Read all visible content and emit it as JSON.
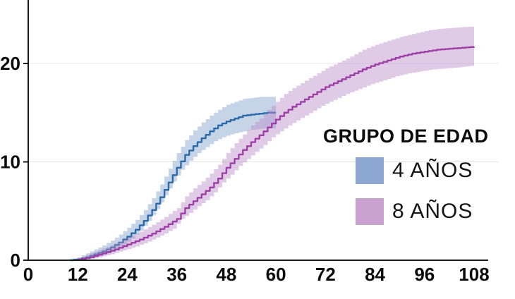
{
  "chart_data": {
    "type": "line",
    "subtype": "step-cumulative-incidence-with-confidence-bands",
    "title": "",
    "xlabel": "",
    "ylabel": "",
    "xlim": [
      0,
      108
    ],
    "ylim": [
      0,
      25.7
    ],
    "x_ticks": [
      0,
      12,
      24,
      36,
      48,
      60,
      72,
      84,
      96,
      108
    ],
    "y_ticks": [
      0,
      10,
      20
    ],
    "grid": "horizontal-only",
    "grid_color": "#e4e4e4",
    "axis_color": "#1c1c1c",
    "tick_label_color": "#0b0b0b",
    "legend": {
      "title": "GRUPO DE EDAD",
      "position": "inside-right",
      "items": [
        {
          "label": "4 AÑOS",
          "swatch_color": "#8ba7d2"
        },
        {
          "label": "8 AÑOS",
          "swatch_color": "#c9a2d0"
        }
      ]
    },
    "series": [
      {
        "name": "4 AÑOS",
        "line_color": "#2d6aa8",
        "band_color": "#7f9fc9",
        "band_opacity": 0.45,
        "points_mvlh": [
          [
            10,
            0.0,
            0.0,
            0.05
          ],
          [
            12,
            0.1,
            0.0,
            0.3
          ],
          [
            14,
            0.3,
            0.05,
            0.7
          ],
          [
            16,
            0.6,
            0.2,
            1.1
          ],
          [
            18,
            0.9,
            0.4,
            1.5
          ],
          [
            20,
            1.3,
            0.7,
            2.0
          ],
          [
            22,
            1.8,
            1.1,
            2.6
          ],
          [
            24,
            2.4,
            1.6,
            3.3
          ],
          [
            26,
            3.1,
            2.2,
            4.1
          ],
          [
            28,
            4.0,
            3.0,
            5.1
          ],
          [
            30,
            5.1,
            4.0,
            6.3
          ],
          [
            32,
            6.4,
            5.2,
            7.7
          ],
          [
            34,
            7.9,
            6.6,
            9.3
          ],
          [
            36,
            9.4,
            8.0,
            10.9
          ],
          [
            38,
            10.7,
            9.2,
            12.2
          ],
          [
            40,
            11.6,
            10.1,
            13.2
          ],
          [
            42,
            12.4,
            10.9,
            14.0
          ],
          [
            44,
            13.1,
            11.5,
            14.7
          ],
          [
            46,
            13.7,
            12.1,
            15.3
          ],
          [
            48,
            14.1,
            12.5,
            15.8
          ],
          [
            50,
            14.4,
            12.8,
            16.1
          ],
          [
            52,
            14.7,
            13.0,
            16.4
          ],
          [
            54,
            14.8,
            13.2,
            16.5
          ],
          [
            56,
            14.9,
            13.3,
            16.6
          ],
          [
            58,
            15.0,
            13.4,
            16.6
          ],
          [
            60,
            15.0,
            13.4,
            16.6
          ]
        ]
      },
      {
        "name": "8 AÑOS",
        "line_color": "#9d3fa6",
        "band_color": "#bb8cca",
        "band_opacity": 0.45,
        "points_mvlh": [
          [
            12,
            0.05,
            0.0,
            0.2
          ],
          [
            15,
            0.3,
            0.1,
            0.7
          ],
          [
            18,
            0.7,
            0.3,
            1.2
          ],
          [
            21,
            1.1,
            0.6,
            1.7
          ],
          [
            24,
            1.6,
            1.0,
            2.3
          ],
          [
            27,
            2.1,
            1.4,
            2.9
          ],
          [
            30,
            2.7,
            1.9,
            3.6
          ],
          [
            33,
            3.4,
            2.5,
            4.4
          ],
          [
            36,
            4.2,
            3.2,
            5.3
          ],
          [
            38,
            5.3,
            4.2,
            6.5
          ],
          [
            40,
            6.0,
            4.8,
            7.3
          ],
          [
            42,
            6.7,
            5.5,
            8.0
          ],
          [
            44,
            7.4,
            6.1,
            8.8
          ],
          [
            46,
            8.3,
            6.9,
            9.7
          ],
          [
            48,
            9.4,
            7.9,
            10.9
          ],
          [
            50,
            10.3,
            8.7,
            11.9
          ],
          [
            52,
            11.2,
            9.6,
            12.8
          ],
          [
            54,
            12.0,
            10.3,
            13.7
          ],
          [
            56,
            12.7,
            11.0,
            14.4
          ],
          [
            58,
            13.5,
            11.7,
            15.3
          ],
          [
            60,
            14.3,
            12.5,
            16.1
          ],
          [
            62,
            15.0,
            13.1,
            16.9
          ],
          [
            64,
            15.6,
            13.7,
            17.5
          ],
          [
            66,
            16.1,
            14.2,
            18.0
          ],
          [
            68,
            16.6,
            14.7,
            18.5
          ],
          [
            70,
            17.1,
            15.2,
            19.0
          ],
          [
            72,
            17.6,
            15.7,
            19.5
          ],
          [
            75,
            18.2,
            16.3,
            20.1
          ],
          [
            78,
            18.8,
            16.9,
            20.7
          ],
          [
            81,
            19.4,
            17.4,
            21.4
          ],
          [
            84,
            19.9,
            17.9,
            21.9
          ],
          [
            87,
            20.3,
            18.3,
            22.3
          ],
          [
            90,
            20.7,
            18.7,
            22.7
          ],
          [
            93,
            21.0,
            19.0,
            23.0
          ],
          [
            96,
            21.2,
            19.2,
            23.3
          ],
          [
            99,
            21.4,
            19.4,
            23.5
          ],
          [
            102,
            21.5,
            19.5,
            23.6
          ],
          [
            105,
            21.6,
            19.6,
            23.7
          ],
          [
            108,
            21.7,
            19.75,
            23.75
          ]
        ]
      }
    ]
  }
}
